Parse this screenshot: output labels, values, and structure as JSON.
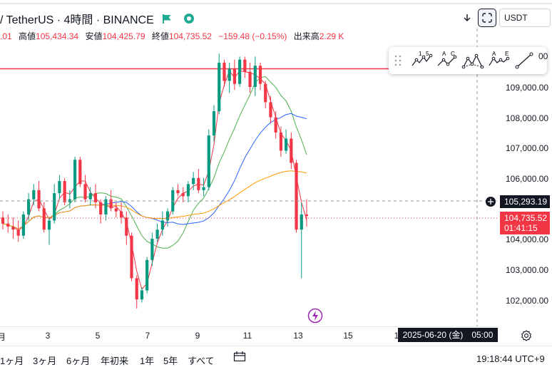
{
  "header": {
    "symbol_title": "/ TetherUS · 4時間 · BINANCE"
  },
  "ohlc": {
    "open_value": ".01",
    "high_label": "高値",
    "high_value": "105,434.34",
    "low_label": "安値",
    "low_value": "104,425.79",
    "close_label": "終値",
    "close_value": "104,735.52",
    "change": "−159.48 (−0.15%)",
    "volume_label": "出来高",
    "volume_value": "2.29 K"
  },
  "toolbar": {
    "currency": "USDT",
    "download_icon": "arrow-down-icon",
    "screenshot_icon": "screenshot-icon"
  },
  "drawing_tools": [
    {
      "name": "pattern-15",
      "label_a": "1",
      "label_b": "5"
    },
    {
      "name": "pattern-ac",
      "label_a": "A",
      "label_b": "C"
    },
    {
      "name": "pattern-ab-cd",
      "label_a": "",
      "label_b": ""
    },
    {
      "name": "pattern-ae",
      "label_a": "A",
      "label_b": "E"
    },
    {
      "name": "trend-line",
      "label_a": "",
      "label_b": ""
    }
  ],
  "price_axis": {
    "ticks": [
      {
        "label": "109,000.00",
        "value": 109000
      },
      {
        "label": "108,000.00",
        "value": 108000
      },
      {
        "label": "107,000.00",
        "value": 107000
      },
      {
        "label": "106,000.00",
        "value": 106000
      },
      {
        "label": "104,000.00",
        "value": 104000
      },
      {
        "label": "103,000.00",
        "value": 103000
      },
      {
        "label": "102,000.00",
        "value": 102000
      }
    ],
    "top_partial": "00",
    "crosshair_price": "105,293.19",
    "last_price": "104,735.52",
    "countdown": "01:41:15",
    "colors": {
      "last": "#f23645",
      "crosshair": "#131722"
    }
  },
  "time_axis": {
    "ticks": [
      {
        "label": "月",
        "day": 1
      },
      {
        "label": "3",
        "day": 3
      },
      {
        "label": "5",
        "day": 5
      },
      {
        "label": "7",
        "day": 7
      },
      {
        "label": "9",
        "day": 9
      },
      {
        "label": "11",
        "day": 11
      },
      {
        "label": "13",
        "day": 13
      },
      {
        "label": "15",
        "day": 15
      },
      {
        "label": "1",
        "day": 17
      }
    ],
    "crosshair_date": "2025-06-20 (金)　05:00"
  },
  "bottom_bar": {
    "ranges": [
      "1ヶ月",
      "3ヶ月",
      "6ヶ月",
      "年初来",
      "1年",
      "5年",
      "すべて"
    ],
    "clock": "19:18:44 UTC+9"
  },
  "chart_data": {
    "type": "candlestick",
    "price_range": [
      101500,
      110500
    ],
    "horizontal_line": 109600,
    "up_color": "#089981",
    "down_color": "#f23645",
    "candles": [
      [
        104700,
        104900,
        104300,
        104500
      ],
      [
        104500,
        104800,
        104200,
        104400
      ],
      [
        104400,
        104700,
        104000,
        104300
      ],
      [
        104300,
        104600,
        103900,
        104100
      ],
      [
        104100,
        104900,
        104000,
        104800
      ],
      [
        104800,
        105500,
        104600,
        105300
      ],
      [
        105300,
        105800,
        105100,
        105600
      ],
      [
        105600,
        105900,
        104900,
        105000
      ],
      [
        105000,
        105200,
        104200,
        104300
      ],
      [
        104300,
        104700,
        103800,
        104600
      ],
      [
        104600,
        105800,
        104500,
        105500
      ],
      [
        105500,
        106100,
        105300,
        105900
      ],
      [
        105900,
        106000,
        105100,
        105200
      ],
      [
        105200,
        105600,
        105000,
        105300
      ],
      [
        105300,
        106700,
        105200,
        106600
      ],
      [
        106600,
        106700,
        105700,
        105800
      ],
      [
        105800,
        106100,
        105200,
        105300
      ],
      [
        105300,
        105700,
        105100,
        105500
      ],
      [
        105500,
        105800,
        105000,
        105200
      ],
      [
        105200,
        105300,
        104500,
        104800
      ],
      [
        104800,
        105400,
        104600,
        105300
      ],
      [
        105300,
        105600,
        104900,
        105000
      ],
      [
        105000,
        105200,
        104700,
        104900
      ],
      [
        104900,
        105200,
        104500,
        104700
      ],
      [
        104700,
        104900,
        103800,
        104100
      ],
      [
        104100,
        104200,
        102600,
        102700
      ],
      [
        102700,
        102800,
        101700,
        102000
      ],
      [
        102000,
        102400,
        101900,
        102300
      ],
      [
        102300,
        103400,
        102200,
        103300
      ],
      [
        103300,
        104200,
        103100,
        104000
      ],
      [
        104000,
        104500,
        103900,
        104300
      ],
      [
        104300,
        104900,
        104100,
        104600
      ],
      [
        104600,
        105000,
        104400,
        104900
      ],
      [
        104900,
        105700,
        104800,
        105600
      ],
      [
        105600,
        105800,
        105400,
        105500
      ],
      [
        105500,
        105700,
        105200,
        105400
      ],
      [
        105400,
        105900,
        105200,
        105800
      ],
      [
        105800,
        106200,
        105600,
        106000
      ],
      [
        106000,
        106300,
        105500,
        105600
      ],
      [
        105600,
        106000,
        105400,
        105700
      ],
      [
        105700,
        107600,
        105600,
        107400
      ],
      [
        107400,
        108400,
        107200,
        108200
      ],
      [
        108200,
        110100,
        108100,
        109800
      ],
      [
        109800,
        109900,
        109000,
        109200
      ],
      [
        109200,
        109800,
        108800,
        109600
      ],
      [
        109600,
        109900,
        108900,
        109100
      ],
      [
        109100,
        110000,
        109000,
        109900
      ],
      [
        109900,
        110000,
        109300,
        109500
      ],
      [
        109500,
        109800,
        108800,
        109000
      ],
      [
        109000,
        110000,
        108700,
        109700
      ],
      [
        109700,
        109800,
        108900,
        109100
      ],
      [
        109100,
        109200,
        108300,
        108500
      ],
      [
        108500,
        108700,
        107800,
        108000
      ],
      [
        108000,
        108200,
        107300,
        107500
      ],
      [
        107500,
        107700,
        106700,
        106900
      ],
      [
        106900,
        107600,
        106800,
        107300
      ],
      [
        107300,
        107500,
        106300,
        106500
      ],
      [
        106500,
        106600,
        104200,
        104300
      ],
      [
        104300,
        105200,
        102700,
        104800
      ],
      [
        104800,
        105300,
        104400,
        104750
      ]
    ]
  }
}
